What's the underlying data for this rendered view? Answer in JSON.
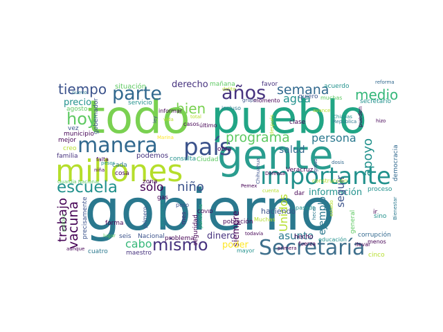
{
  "figure": {
    "type": "wordcloud",
    "palette": [
      "#440154",
      "#3b528b",
      "#21918c",
      "#5ec962",
      "#b5de2b",
      "#fde725",
      "#2a788e",
      "#35b779",
      "#7ad151",
      "#31688e"
    ]
  },
  "words": [
    {
      "text": "gobierno",
      "color": "#2a788e"
    },
    {
      "text": "todo",
      "color": "#7ad151"
    },
    {
      "text": "pueblo",
      "color": "#21a585"
    },
    {
      "text": "gente",
      "color": "#2a9d8f"
    },
    {
      "text": "millones",
      "color": "#b5de2b"
    },
    {
      "text": "importante",
      "color": "#21918c"
    },
    {
      "text": "país",
      "color": "#3b528b"
    },
    {
      "text": "Secretaría",
      "color": "#3e6f8c"
    },
    {
      "text": "manera",
      "color": "#31688e"
    },
    {
      "text": "parte",
      "color": "#31688e"
    },
    {
      "text": "años",
      "color": "#46327e"
    },
    {
      "text": "escuela",
      "color": "#21918c"
    },
    {
      "text": "mismo",
      "color": "#46327e"
    },
    {
      "text": "tiempo",
      "color": "#3b528b"
    },
    {
      "text": "hoy",
      "color": "#5ec962"
    },
    {
      "text": "bien",
      "color": "#7ad151"
    },
    {
      "text": "semana",
      "color": "#31688e"
    },
    {
      "text": "medio",
      "color": "#35b779"
    },
    {
      "text": "programa",
      "color": "#5ec962"
    },
    {
      "text": "agua",
      "color": "#21918c"
    },
    {
      "text": "persona",
      "color": "#2a788e"
    },
    {
      "text": "apoyo",
      "color": "#21918c"
    },
    {
      "text": "vacuna",
      "color": "#440154"
    },
    {
      "text": "trabajo",
      "color": "#440154"
    },
    {
      "text": "niño",
      "color": "#3b528b"
    },
    {
      "text": "sólo",
      "color": "#440154"
    },
    {
      "text": "información",
      "color": "#21918c"
    },
    {
      "text": "Unidos",
      "color": "#b5de2b"
    },
    {
      "text": "seguir",
      "color": "#3b528b"
    },
    {
      "text": "cabo",
      "color": "#35b779"
    },
    {
      "text": "salud",
      "color": "#31688e"
    },
    {
      "text": "derecho",
      "color": "#46327e"
    },
    {
      "text": "situación",
      "color": "#5ec962"
    },
    {
      "text": "precio",
      "color": "#21918c"
    },
    {
      "text": "dinero",
      "color": "#46327e"
    },
    {
      "text": "asunto",
      "color": "#2a788e"
    },
    {
      "text": "ejemplo",
      "color": "#2a788e"
    },
    {
      "text": "siempre",
      "color": "#440154"
    },
    {
      "text": "poder",
      "color": "#fde725"
    },
    {
      "text": "haciendo",
      "color": "#3b528b"
    },
    {
      "text": "podemos",
      "color": "#46327e"
    },
    {
      "text": "problema",
      "color": "#440154"
    },
    {
      "text": "forma",
      "color": "#440154"
    },
    {
      "text": "maestro",
      "color": "#46327e"
    },
    {
      "text": "cuatro",
      "color": "#2a788e"
    },
    {
      "text": "cinco",
      "color": "#b5de2b"
    },
    {
      "text": "seis",
      "color": "#3b528b"
    },
    {
      "text": "Nacional",
      "color": "#3b528b"
    },
    {
      "text": "consulta",
      "color": "#21918c"
    },
    {
      "text": "Ciudad",
      "color": "#5ec962"
    },
    {
      "text": "obra",
      "color": "#440154"
    },
    {
      "text": "casos",
      "color": "#440154"
    },
    {
      "text": "último",
      "color": "#440154"
    },
    {
      "text": "mañana",
      "color": "#5ec962"
    },
    {
      "text": "favor",
      "color": "#46327e"
    },
    {
      "text": "acuerdo",
      "color": "#21918c"
    },
    {
      "text": "reforma",
      "color": "#31688e"
    },
    {
      "text": "delito",
      "color": "#b5de2b"
    },
    {
      "text": "grupo",
      "color": "#3b528b"
    },
    {
      "text": "quiero",
      "color": "#3b528b"
    },
    {
      "text": "momento",
      "color": "#440154"
    },
    {
      "text": "muchas",
      "color": "#5ec962"
    },
    {
      "text": "secretario",
      "color": "#21918c"
    },
    {
      "text": "gobernador",
      "color": "#3b528b"
    },
    {
      "text": "nuevo",
      "color": "#2a788e"
    },
    {
      "text": "agosto",
      "color": "#5ec962"
    },
    {
      "text": "servicio",
      "color": "#21918c"
    },
    {
      "text": "informar",
      "color": "#440154"
    },
    {
      "text": "incluso",
      "color": "#2a788e"
    },
    {
      "text": "avance",
      "color": "#b5de2b"
    },
    {
      "text": "vez",
      "color": "#3b528b"
    },
    {
      "text": "municipio",
      "color": "#440154"
    },
    {
      "text": "mejor",
      "color": "#440154"
    },
    {
      "text": "creo",
      "color": "#b5de2b"
    },
    {
      "text": "familia",
      "color": "#46327e"
    },
    {
      "text": "falta",
      "color": "#440154"
    },
    {
      "text": "cada",
      "color": "#2a788e"
    },
    {
      "text": "cosa",
      "color": "#440154"
    },
    {
      "text": "niña",
      "color": "#440154"
    },
    {
      "text": "pesos",
      "color": "#21918c"
    },
    {
      "text": "zona",
      "color": "#440154"
    },
    {
      "text": "gas",
      "color": "#440154"
    },
    {
      "text": "peso",
      "color": "#3b528b"
    },
    {
      "text": "empresa",
      "color": "#21918c"
    },
    {
      "text": "primero",
      "color": "#3b528b"
    },
    {
      "text": "mes",
      "color": "#46327e"
    },
    {
      "text": "seguridad",
      "color": "#440154"
    },
    {
      "text": "pandemia",
      "color": "#35b779"
    },
    {
      "text": "población",
      "color": "#440154"
    },
    {
      "text": "Muchas",
      "color": "#b5de2b"
    },
    {
      "text": "hecho",
      "color": "#440154"
    },
    {
      "text": "todavía",
      "color": "#440154"
    },
    {
      "text": "mayor",
      "color": "#21918c"
    },
    {
      "text": "pasado",
      "color": "#21918c"
    },
    {
      "text": "fuerza",
      "color": "#440154"
    },
    {
      "text": "sino",
      "color": "#21918c"
    },
    {
      "text": "ir",
      "color": "#440154"
    },
    {
      "text": "general",
      "color": "#5ec962"
    },
    {
      "text": "proceso",
      "color": "#21918c"
    },
    {
      "text": "corrupción",
      "color": "#31688e"
    },
    {
      "text": "educación",
      "color": "#21918c"
    },
    {
      "text": "menos",
      "color": "#440154"
    },
    {
      "text": "llevar",
      "color": "#440154"
    },
    {
      "text": "Bienestar",
      "color": "#2a788e"
    },
    {
      "text": "democracia",
      "color": "#31688e"
    },
    {
      "text": "construcción",
      "color": "#b5de2b"
    },
    {
      "text": "Veracruz",
      "color": "#440154"
    },
    {
      "text": "Defensa",
      "color": "#440154"
    },
    {
      "text": "primera",
      "color": "#440154"
    },
    {
      "text": "Pemex",
      "color": "#440154"
    },
    {
      "text": "dar",
      "color": "#440154"
    },
    {
      "text": "Chihuahua",
      "color": "#3b528b"
    },
    {
      "text": "COVID",
      "color": "#440154"
    },
    {
      "text": "clase",
      "color": "#440154"
    },
    {
      "text": "después",
      "color": "#b5de2b"
    },
    {
      "text": "pueden",
      "color": "#440154"
    },
    {
      "text": "Chiapas",
      "color": "#21918c"
    },
    {
      "text": "República",
      "color": "#2a788e"
    },
    {
      "text": "hizo",
      "color": "#440154"
    },
    {
      "text": "dosis",
      "color": "#31688e"
    },
    {
      "text": "egreso",
      "color": "#3b528b"
    },
    {
      "text": "Guardia Nacional",
      "color": "#5ec962"
    },
    {
      "text": "precisamente",
      "color": "#3b528b"
    },
    {
      "text": "aunque",
      "color": "#440154"
    },
    {
      "text": "lugar",
      "color": "#5ec962"
    },
    {
      "text": "política",
      "color": "#5ec962"
    },
    {
      "text": "vida",
      "color": "#b5de2b"
    },
    {
      "text": "total",
      "color": "#b5de2b"
    },
    {
      "text": "ley",
      "color": "#3b528b"
    },
    {
      "text": "estado",
      "color": "#b5de2b"
    },
    {
      "text": "cuenta",
      "color": "#b5de2b"
    },
    {
      "text": "Marina",
      "color": "#fde725"
    },
    {
      "text": "hecer",
      "color": "#2a788e"
    }
  ]
}
